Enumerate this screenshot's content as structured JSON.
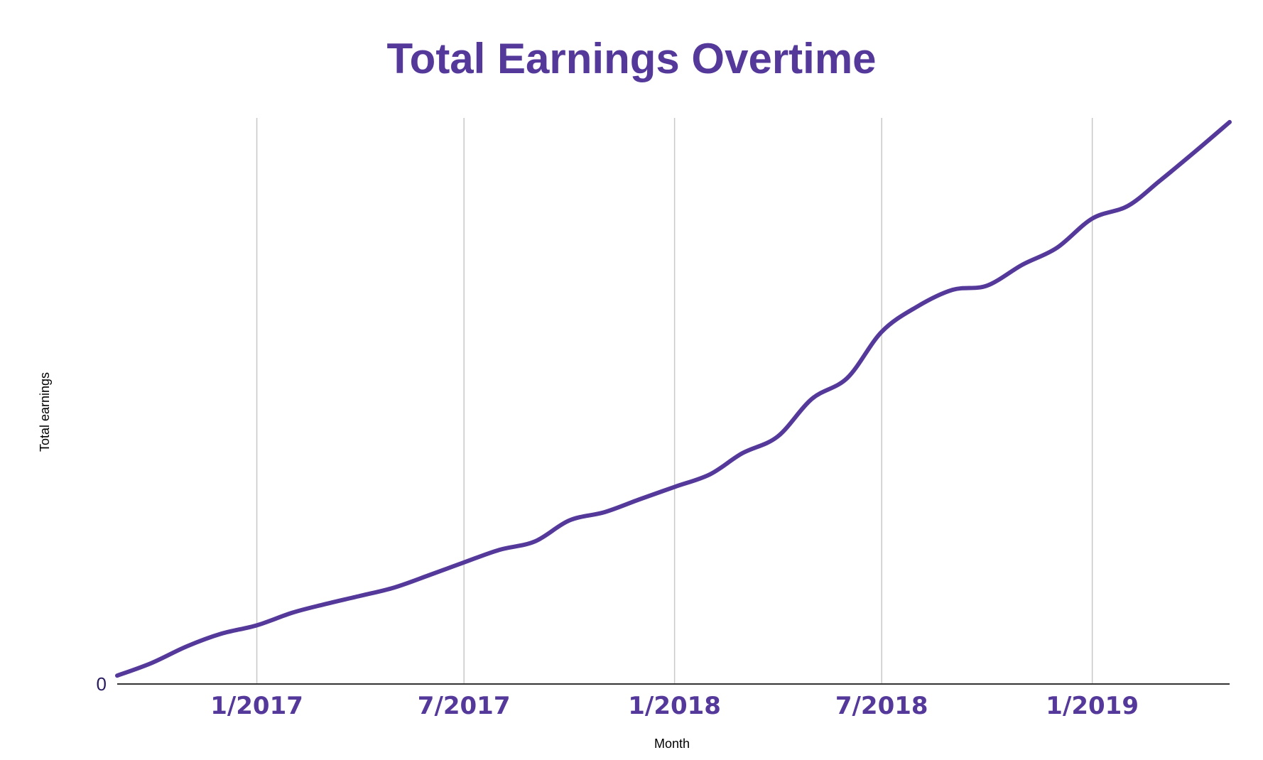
{
  "chart_data": {
    "type": "line",
    "title": "Total Earnings Overtime",
    "xlabel": "Month",
    "ylabel": "Total earnings",
    "x_tick_labels": [
      "1/2017",
      "7/2017",
      "1/2018",
      "7/2018",
      "1/2019"
    ],
    "y_tick_labels": [
      "0"
    ],
    "grid": "vertical",
    "legend": "none",
    "colors": {
      "title": "#55399a",
      "line": "#55399a",
      "x_ticks": "#55399a",
      "y_ticks": "#2a1a5e",
      "axis_title": "#000000",
      "gridline": "#c8c8c8",
      "baseline": "#333333"
    },
    "series": [
      {
        "x": [
          "2016-09",
          "2016-10",
          "2016-11",
          "2016-12",
          "2017-01",
          "2017-02",
          "2017-03",
          "2017-04",
          "2017-05",
          "2017-06",
          "2017-07",
          "2017-08",
          "2017-09",
          "2017-10",
          "2017-11",
          "2017-12",
          "2018-01",
          "2018-02",
          "2018-03",
          "2018-04",
          "2018-05",
          "2018-06",
          "2018-07",
          "2018-08",
          "2018-09",
          "2018-10",
          "2018-11",
          "2018-12",
          "2019-01",
          "2019-02",
          "2019-03",
          "2019-04",
          "2019-05"
        ],
        "values": [
          2,
          5,
          9,
          12,
          14,
          17,
          19,
          21,
          23,
          26,
          29,
          32,
          34,
          39,
          41,
          44,
          47,
          50,
          55,
          59,
          68,
          73,
          84,
          90,
          94,
          95,
          100,
          104,
          111,
          114,
          120,
          127,
          134
        ]
      }
    ]
  }
}
